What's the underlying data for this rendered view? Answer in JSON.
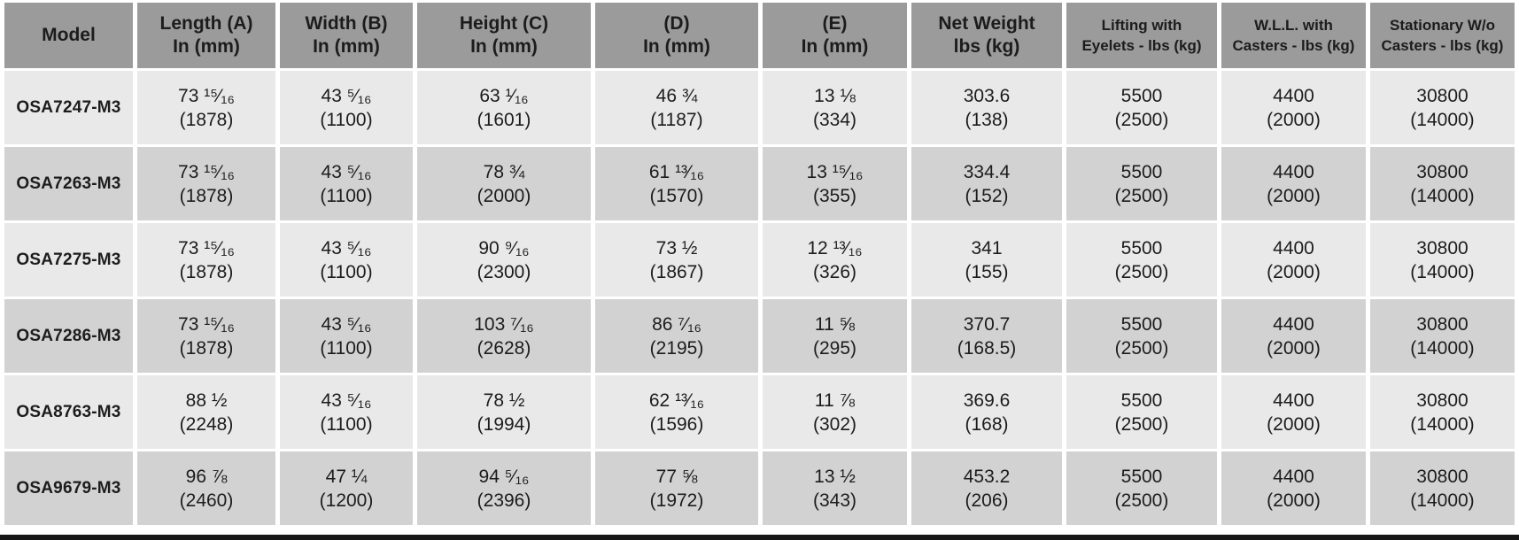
{
  "table": {
    "colors": {
      "header_bg": "#9b9b9b",
      "row_light": "#e9e9e9",
      "row_dark": "#d2d2d2",
      "text": "#1c1c1c",
      "gutter": "#ffffff",
      "bottom_border": "#161616"
    },
    "columns": [
      {
        "line1": "Model",
        "line2": ""
      },
      {
        "line1": "Length (A)",
        "line2": "In (mm)"
      },
      {
        "line1": "Width (B)",
        "line2": "In (mm)"
      },
      {
        "line1": "Height (C)",
        "line2": "In (mm)"
      },
      {
        "line1": "(D)",
        "line2": "In (mm)"
      },
      {
        "line1": "(E)",
        "line2": "In (mm)"
      },
      {
        "line1": "Net Weight",
        "line2": "lbs (kg)"
      },
      {
        "line1": "Lifting with",
        "line2": "Eyelets - lbs (kg)"
      },
      {
        "line1": "W.L.L. with",
        "line2": "Casters - lbs (kg)"
      },
      {
        "line1": "Stationary W/o",
        "line2": "Casters - lbs (kg)"
      }
    ],
    "rows": [
      {
        "model": "OSA7247-M3",
        "values": [
          {
            "line1": "73 ¹⁵⁄₁₆",
            "line2": "(1878)"
          },
          {
            "line1": "43 ⁵⁄₁₆",
            "line2": "(1100)"
          },
          {
            "line1": "63 ¹⁄₁₆",
            "line2": "(1601)"
          },
          {
            "line1": "46 ¾",
            "line2": "(1187)"
          },
          {
            "line1": "13 ⅛",
            "line2": "(334)"
          },
          {
            "line1": "303.6",
            "line2": "(138)"
          },
          {
            "line1": "5500",
            "line2": "(2500)"
          },
          {
            "line1": "4400",
            "line2": "(2000)"
          },
          {
            "line1": "30800",
            "line2": "(14000)"
          }
        ]
      },
      {
        "model": "OSA7263-M3",
        "values": [
          {
            "line1": "73 ¹⁵⁄₁₆",
            "line2": "(1878)"
          },
          {
            "line1": "43 ⁵⁄₁₆",
            "line2": "(1100)"
          },
          {
            "line1": "78 ¾",
            "line2": "(2000)"
          },
          {
            "line1": "61 ¹³⁄₁₆",
            "line2": "(1570)"
          },
          {
            "line1": "13 ¹⁵⁄₁₆",
            "line2": "(355)"
          },
          {
            "line1": "334.4",
            "line2": "(152)"
          },
          {
            "line1": "5500",
            "line2": "(2500)"
          },
          {
            "line1": "4400",
            "line2": "(2000)"
          },
          {
            "line1": "30800",
            "line2": "(14000)"
          }
        ]
      },
      {
        "model": "OSA7275-M3",
        "values": [
          {
            "line1": "73 ¹⁵⁄₁₆",
            "line2": "(1878)"
          },
          {
            "line1": "43 ⁵⁄₁₆",
            "line2": "(1100)"
          },
          {
            "line1": "90 ⁹⁄₁₆",
            "line2": "(2300)"
          },
          {
            "line1": "73 ½",
            "line2": "(1867)"
          },
          {
            "line1": "12 ¹³⁄₁₆",
            "line2": "(326)"
          },
          {
            "line1": "341",
            "line2": "(155)"
          },
          {
            "line1": "5500",
            "line2": "(2500)"
          },
          {
            "line1": "4400",
            "line2": "(2000)"
          },
          {
            "line1": "30800",
            "line2": "(14000)"
          }
        ]
      },
      {
        "model": "OSA7286-M3",
        "values": [
          {
            "line1": "73 ¹⁵⁄₁₆",
            "line2": "(1878)"
          },
          {
            "line1": "43 ⁵⁄₁₆",
            "line2": "(1100)"
          },
          {
            "line1": "103 ⁷⁄₁₆",
            "line2": "(2628)"
          },
          {
            "line1": "86 ⁷⁄₁₆",
            "line2": "(2195)"
          },
          {
            "line1": "11 ⅝",
            "line2": "(295)"
          },
          {
            "line1": "370.7",
            "line2": "(168.5)"
          },
          {
            "line1": "5500",
            "line2": "(2500)"
          },
          {
            "line1": "4400",
            "line2": "(2000)"
          },
          {
            "line1": "30800",
            "line2": "(14000)"
          }
        ]
      },
      {
        "model": "OSA8763-M3",
        "values": [
          {
            "line1": "88 ½",
            "line2": "(2248)"
          },
          {
            "line1": "43 ⁵⁄₁₆",
            "line2": "(1100)"
          },
          {
            "line1": "78 ½",
            "line2": "(1994)"
          },
          {
            "line1": "62 ¹³⁄₁₆",
            "line2": "(1596)"
          },
          {
            "line1": "11 ⅞",
            "line2": "(302)"
          },
          {
            "line1": "369.6",
            "line2": "(168)"
          },
          {
            "line1": "5500",
            "line2": "(2500)"
          },
          {
            "line1": "4400",
            "line2": "(2000)"
          },
          {
            "line1": "30800",
            "line2": "(14000)"
          }
        ]
      },
      {
        "model": "OSA9679-M3",
        "values": [
          {
            "line1": "96 ⅞",
            "line2": "(2460)"
          },
          {
            "line1": "47 ¼",
            "line2": "(1200)"
          },
          {
            "line1": "94 ⁵⁄₁₆",
            "line2": "(2396)"
          },
          {
            "line1": "77 ⅝",
            "line2": "(1972)"
          },
          {
            "line1": "13 ½",
            "line2": "(343)"
          },
          {
            "line1": "453.2",
            "line2": "(206)"
          },
          {
            "line1": "5500",
            "line2": "(2500)"
          },
          {
            "line1": "4400",
            "line2": "(2000)"
          },
          {
            "line1": "30800",
            "line2": "(14000)"
          }
        ]
      }
    ]
  }
}
